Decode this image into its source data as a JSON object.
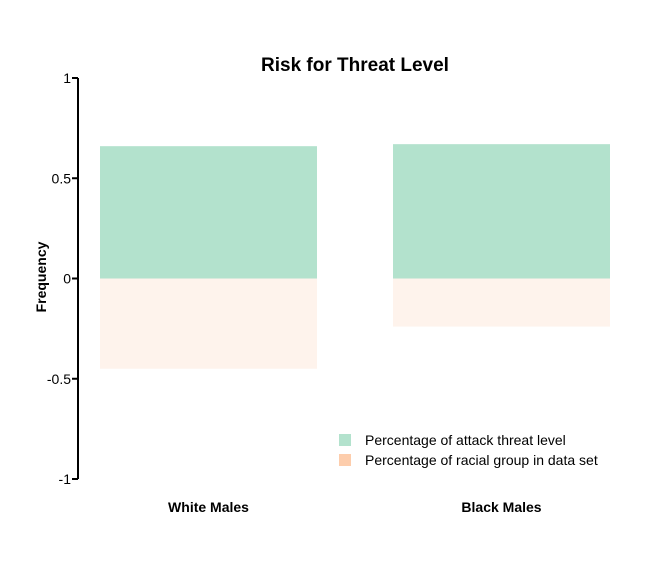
{
  "chart_data": {
    "type": "bar",
    "title": "Risk for Threat Level",
    "xlabel": "",
    "ylabel": "Frequency",
    "categories": [
      "White Males",
      "Black Males"
    ],
    "series": [
      {
        "name": "Percentage of attack threat level",
        "values": [
          0.66,
          0.67
        ],
        "color": "#b3e2cd"
      },
      {
        "name": "Percentage of racial group in data set",
        "values": [
          -0.45,
          -0.24
        ],
        "color": "#fef3ec",
        "legend_color": "#fdcdac"
      }
    ],
    "ylim": [
      -1,
      1
    ],
    "yticks": [
      {
        "value": -1,
        "label": "-1"
      },
      {
        "value": -0.5,
        "label": "-0.5"
      },
      {
        "value": 0,
        "label": "0"
      },
      {
        "value": 0.5,
        "label": "0.5"
      },
      {
        "value": 1,
        "label": "1"
      }
    ],
    "grid": false,
    "legend_position": "bottom-right"
  }
}
